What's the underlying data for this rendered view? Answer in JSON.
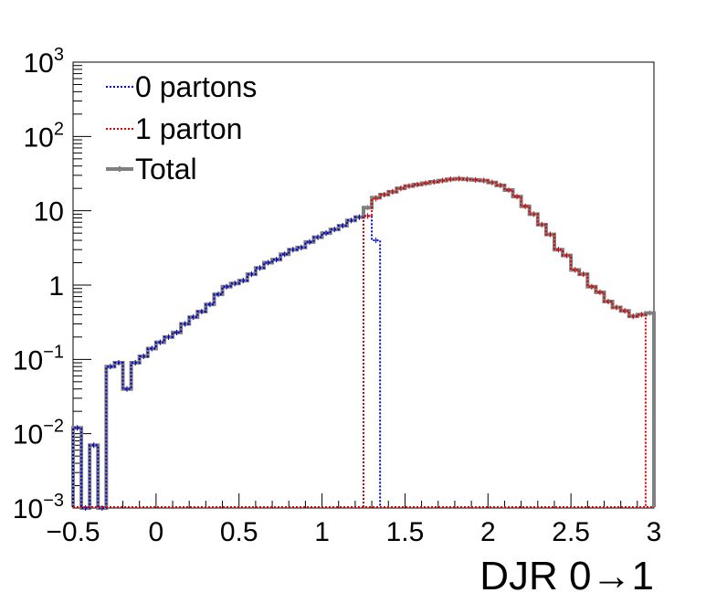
{
  "chart_data": {
    "type": "line",
    "xlabel": "DJR 0→1",
    "xlim": [
      -0.5,
      3.0
    ],
    "ylim": [
      0.001,
      1000
    ],
    "yscale": "log",
    "legend_position": "top-left",
    "x_ticks": [
      {
        "value": -0.5,
        "label": "−0.5"
      },
      {
        "value": 0,
        "label": "0"
      },
      {
        "value": 0.5,
        "label": "0.5"
      },
      {
        "value": 1,
        "label": "1"
      },
      {
        "value": 1.5,
        "label": "1.5"
      },
      {
        "value": 2,
        "label": "2"
      },
      {
        "value": 2.5,
        "label": "2.5"
      },
      {
        "value": 3,
        "label": "3"
      }
    ],
    "y_ticks": [
      {
        "value": 0.001,
        "base": "10",
        "exp": "−3",
        "plain": ""
      },
      {
        "value": 0.01,
        "base": "10",
        "exp": "−2",
        "plain": ""
      },
      {
        "value": 0.1,
        "base": "10",
        "exp": "−1",
        "plain": ""
      },
      {
        "value": 1,
        "base": "",
        "exp": "",
        "plain": "1"
      },
      {
        "value": 10,
        "base": "",
        "exp": "",
        "plain": "10"
      },
      {
        "value": 100,
        "base": "10",
        "exp": "2",
        "plain": ""
      },
      {
        "value": 1000,
        "base": "10",
        "exp": "3",
        "plain": ""
      }
    ],
    "bin_width": 0.05,
    "series": [
      {
        "name": "0 partons",
        "color": "#0000cc",
        "style": "dotted",
        "bins": [
          [
            -0.5,
            0.012
          ],
          [
            -0.45,
            0.001
          ],
          [
            -0.4,
            0.007
          ],
          [
            -0.35,
            0.001
          ],
          [
            -0.3,
            0.08
          ],
          [
            -0.25,
            0.09
          ],
          [
            -0.2,
            0.04
          ],
          [
            -0.15,
            0.09
          ],
          [
            -0.1,
            0.11
          ],
          [
            -0.05,
            0.14
          ],
          [
            0.0,
            0.17
          ],
          [
            0.05,
            0.2
          ],
          [
            0.1,
            0.23
          ],
          [
            0.15,
            0.3
          ],
          [
            0.2,
            0.37
          ],
          [
            0.25,
            0.44
          ],
          [
            0.3,
            0.55
          ],
          [
            0.35,
            0.75
          ],
          [
            0.4,
            0.95
          ],
          [
            0.45,
            1.05
          ],
          [
            0.5,
            1.15
          ],
          [
            0.55,
            1.4
          ],
          [
            0.6,
            1.7
          ],
          [
            0.65,
            2.0
          ],
          [
            0.7,
            2.2
          ],
          [
            0.75,
            2.6
          ],
          [
            0.8,
            3.0
          ],
          [
            0.85,
            3.2
          ],
          [
            0.9,
            3.8
          ],
          [
            0.95,
            4.4
          ],
          [
            1.0,
            5.0
          ],
          [
            1.05,
            5.6
          ],
          [
            1.1,
            6.3
          ],
          [
            1.15,
            7.4
          ],
          [
            1.2,
            8.2
          ],
          [
            1.25,
            8.5
          ],
          [
            1.3,
            4.0
          ]
        ]
      },
      {
        "name": "1 parton",
        "color": "#dd0000",
        "style": "dotted",
        "bins": [
          [
            1.25,
            8.5
          ],
          [
            1.3,
            14.5
          ],
          [
            1.35,
            16.5
          ],
          [
            1.4,
            18.0
          ],
          [
            1.45,
            20.0
          ],
          [
            1.5,
            21.5
          ],
          [
            1.55,
            22.5
          ],
          [
            1.6,
            23.5
          ],
          [
            1.65,
            24.5
          ],
          [
            1.7,
            25.5
          ],
          [
            1.75,
            26.5
          ],
          [
            1.8,
            27.0
          ],
          [
            1.85,
            26.5
          ],
          [
            1.9,
            26.0
          ],
          [
            1.95,
            25.5
          ],
          [
            2.0,
            24.0
          ],
          [
            2.05,
            22.0
          ],
          [
            2.1,
            19.0
          ],
          [
            2.15,
            15.5
          ],
          [
            2.2,
            11.5
          ],
          [
            2.25,
            9.0
          ],
          [
            2.3,
            6.5
          ],
          [
            2.35,
            4.8
          ],
          [
            2.4,
            3.0
          ],
          [
            2.45,
            2.5
          ],
          [
            2.5,
            1.6
          ],
          [
            2.55,
            1.4
          ],
          [
            2.6,
            0.95
          ],
          [
            2.65,
            0.8
          ],
          [
            2.7,
            0.6
          ],
          [
            2.75,
            0.5
          ],
          [
            2.8,
            0.45
          ],
          [
            2.85,
            0.38
          ],
          [
            2.9,
            0.4
          ]
        ]
      },
      {
        "name": "Total",
        "color": "#808080",
        "style": "solid",
        "bins": [
          [
            -0.5,
            0.012
          ],
          [
            -0.45,
            0.001
          ],
          [
            -0.4,
            0.007
          ],
          [
            -0.35,
            0.001
          ],
          [
            -0.3,
            0.08
          ],
          [
            -0.25,
            0.09
          ],
          [
            -0.2,
            0.04
          ],
          [
            -0.15,
            0.09
          ],
          [
            -0.1,
            0.11
          ],
          [
            -0.05,
            0.14
          ],
          [
            0.0,
            0.17
          ],
          [
            0.05,
            0.2
          ],
          [
            0.1,
            0.23
          ],
          [
            0.15,
            0.3
          ],
          [
            0.2,
            0.37
          ],
          [
            0.25,
            0.44
          ],
          [
            0.3,
            0.55
          ],
          [
            0.35,
            0.75
          ],
          [
            0.4,
            0.95
          ],
          [
            0.45,
            1.05
          ],
          [
            0.5,
            1.15
          ],
          [
            0.55,
            1.4
          ],
          [
            0.6,
            1.7
          ],
          [
            0.65,
            2.0
          ],
          [
            0.7,
            2.2
          ],
          [
            0.75,
            2.6
          ],
          [
            0.8,
            3.0
          ],
          [
            0.85,
            3.2
          ],
          [
            0.9,
            3.8
          ],
          [
            0.95,
            4.4
          ],
          [
            1.0,
            5.0
          ],
          [
            1.05,
            5.6
          ],
          [
            1.1,
            6.3
          ],
          [
            1.15,
            7.4
          ],
          [
            1.2,
            8.2
          ],
          [
            1.25,
            11.0
          ],
          [
            1.3,
            15.0
          ],
          [
            1.35,
            16.5
          ],
          [
            1.4,
            18.0
          ],
          [
            1.45,
            20.0
          ],
          [
            1.5,
            21.5
          ],
          [
            1.55,
            22.5
          ],
          [
            1.6,
            23.5
          ],
          [
            1.65,
            24.5
          ],
          [
            1.7,
            25.5
          ],
          [
            1.75,
            26.5
          ],
          [
            1.8,
            27.0
          ],
          [
            1.85,
            26.5
          ],
          [
            1.9,
            26.0
          ],
          [
            1.95,
            25.5
          ],
          [
            2.0,
            24.0
          ],
          [
            2.05,
            22.0
          ],
          [
            2.1,
            19.0
          ],
          [
            2.15,
            15.5
          ],
          [
            2.2,
            11.5
          ],
          [
            2.25,
            9.0
          ],
          [
            2.3,
            6.5
          ],
          [
            2.35,
            4.8
          ],
          [
            2.4,
            3.0
          ],
          [
            2.45,
            2.5
          ],
          [
            2.5,
            1.6
          ],
          [
            2.55,
            1.4
          ],
          [
            2.6,
            0.95
          ],
          [
            2.65,
            0.8
          ],
          [
            2.7,
            0.6
          ],
          [
            2.75,
            0.5
          ],
          [
            2.8,
            0.45
          ],
          [
            2.85,
            0.38
          ],
          [
            2.9,
            0.4
          ],
          [
            2.95,
            0.42
          ]
        ]
      }
    ]
  }
}
